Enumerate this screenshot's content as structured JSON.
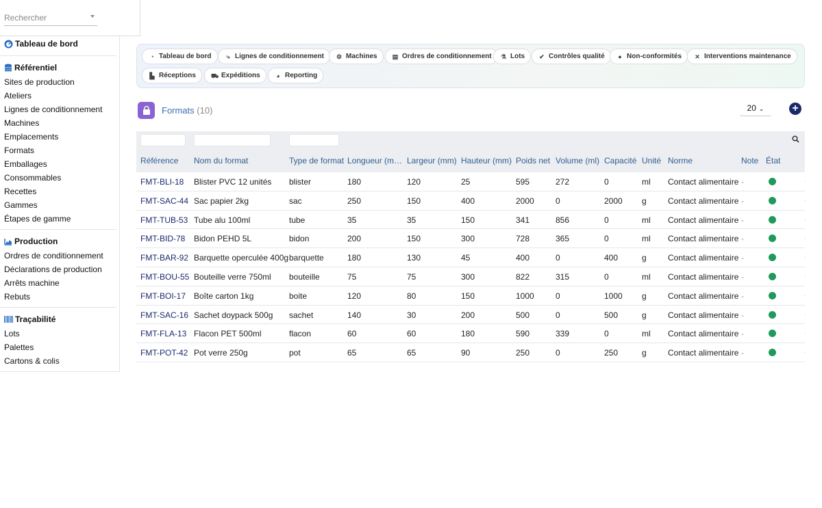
{
  "search": {
    "placeholder": "Rechercher"
  },
  "sidebar": {
    "home_label": "Tableau de bord",
    "sections": [
      {
        "title": "Référentiel",
        "icon": "database-icon",
        "items": [
          "Sites de production",
          "Ateliers",
          "Lignes de conditionnement",
          "Machines",
          "Emplacements",
          "Formats",
          "Emballages",
          "Consommables",
          "Recettes",
          "Gammes",
          "Étapes de gamme"
        ]
      },
      {
        "title": "Production",
        "icon": "chart-area-icon",
        "items": [
          "Ordres de conditionnement",
          "Déclarations de production",
          "Arrêts machine",
          "Rebuts"
        ]
      },
      {
        "title": "Traçabilité",
        "icon": "barcode-icon",
        "items": [
          "Lots",
          "Palettes",
          "Cartons & colis"
        ]
      }
    ]
  },
  "nav": {
    "buttons": [
      {
        "label": "Tableau de bord",
        "icon": "gauge-icon"
      },
      {
        "label": "Lignes de conditionnement",
        "icon": "flow-icon"
      },
      {
        "label": "Machines",
        "icon": "gears-icon"
      },
      {
        "label": "Ordres de conditionnement",
        "icon": "clipboard-icon"
      },
      {
        "label": "Lots",
        "icon": "flask-icon"
      },
      {
        "label": "Contrôles qualité",
        "icon": "check-circle-icon"
      },
      {
        "label": "Non-conformités",
        "icon": "alert-circle-icon"
      },
      {
        "label": "Interventions maintenance",
        "icon": "tools-icon"
      },
      {
        "label": "Réceptions",
        "icon": "dolly-icon"
      },
      {
        "label": "Expéditions",
        "icon": "truck-icon"
      },
      {
        "label": "Reporting",
        "icon": "pie-chart-icon"
      }
    ]
  },
  "page": {
    "title": "Formats",
    "count": "(10)",
    "page_size": "20"
  },
  "table": {
    "headers": [
      "Référence",
      "Nom du format",
      "Type de format",
      "Longueur (m…",
      "Largeur (mm)",
      "Hauteur (mm)",
      "Poids net",
      "Volume (ml)",
      "Capacité",
      "Unité",
      "Norme",
      "Note",
      "État"
    ],
    "rows": [
      [
        "FMT-BLI-18",
        "Blister PVC 12 unités",
        "blister",
        "180",
        "120",
        "25",
        "595",
        "272",
        "0",
        "ml",
        "Contact alimentaire",
        "-"
      ],
      [
        "FMT-SAC-44",
        "Sac papier 2kg",
        "sac",
        "250",
        "150",
        "400",
        "2000",
        "0",
        "2000",
        "g",
        "Contact alimentaire",
        "-"
      ],
      [
        "FMT-TUB-53",
        "Tube alu 100ml",
        "tube",
        "35",
        "35",
        "150",
        "341",
        "856",
        "0",
        "ml",
        "Contact alimentaire",
        "-"
      ],
      [
        "FMT-BID-78",
        "Bidon PEHD 5L",
        "bidon",
        "200",
        "150",
        "300",
        "728",
        "365",
        "0",
        "ml",
        "Contact alimentaire",
        "-"
      ],
      [
        "FMT-BAR-92",
        "Barquette operculée 400g",
        "barquette",
        "180",
        "130",
        "45",
        "400",
        "0",
        "400",
        "g",
        "Contact alimentaire",
        "-"
      ],
      [
        "FMT-BOU-55",
        "Bouteille verre 750ml",
        "bouteille",
        "75",
        "75",
        "300",
        "822",
        "315",
        "0",
        "ml",
        "Contact alimentaire",
        "-"
      ],
      [
        "FMT-BOI-17",
        "Boîte carton 1kg",
        "boite",
        "120",
        "80",
        "150",
        "1000",
        "0",
        "1000",
        "g",
        "Contact alimentaire",
        "-"
      ],
      [
        "FMT-SAC-16",
        "Sachet doypack 500g",
        "sachet",
        "140",
        "30",
        "200",
        "500",
        "0",
        "500",
        "g",
        "Contact alimentaire",
        "-"
      ],
      [
        "FMT-FLA-13",
        "Flacon PET 500ml",
        "flacon",
        "60",
        "60",
        "180",
        "590",
        "339",
        "0",
        "ml",
        "Contact alimentaire",
        "-"
      ],
      [
        "FMT-POT-42",
        "Pot verre 250g",
        "pot",
        "65",
        "65",
        "90",
        "250",
        "0",
        "250",
        "g",
        "Contact alimentaire",
        "-"
      ]
    ],
    "status_color": "#1f9a5c"
  }
}
